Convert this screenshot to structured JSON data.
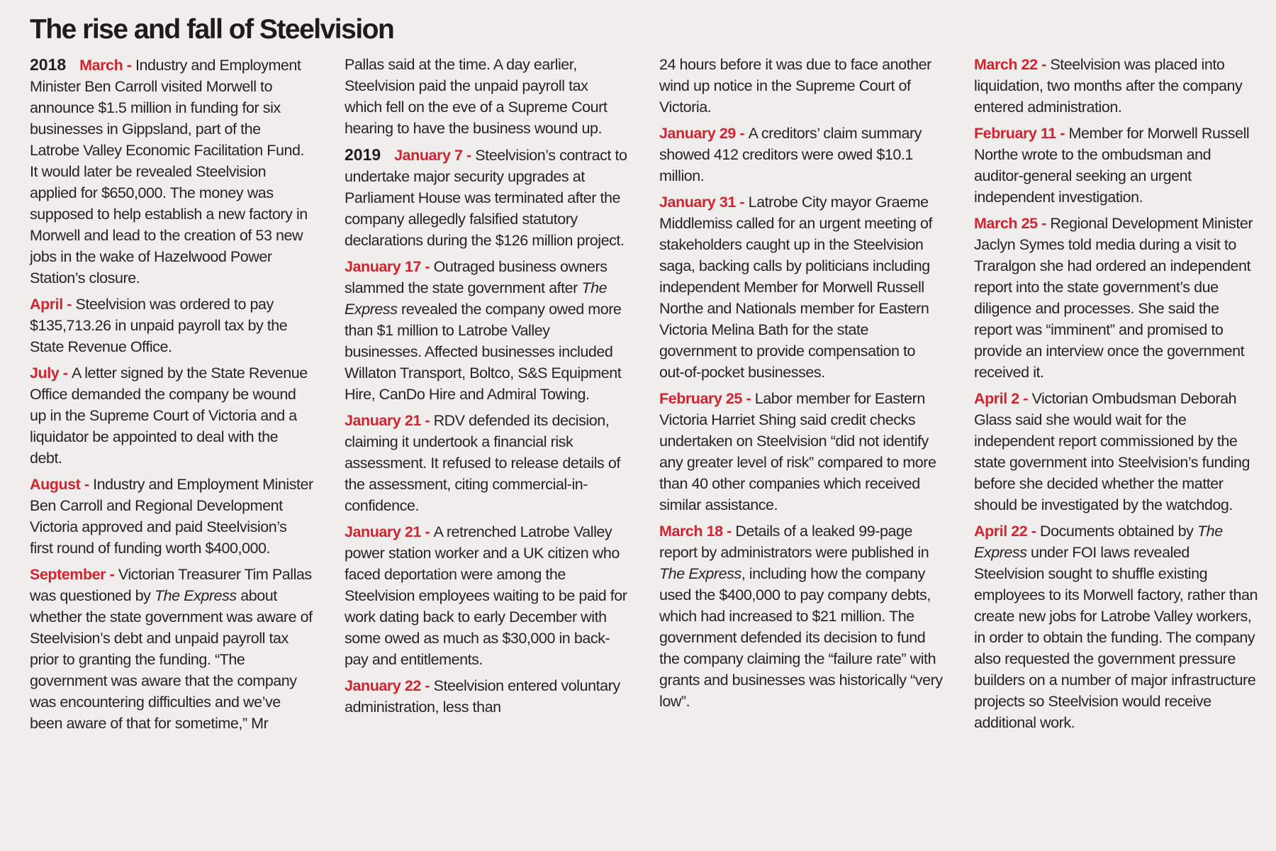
{
  "title": "The rise and fall of Steelvision",
  "colors": {
    "background": "#efeeec",
    "body_text": "#272324",
    "date_red": "#d2232e",
    "title_black": "#1e1b1c"
  },
  "columns": [
    {
      "entries": [
        {
          "year": "2018",
          "date": "March",
          "text": [
            {
              "t": "Industry and Employment Minister Ben Carroll visited Morwell to announce $1.5 million in funding for six businesses in Gippsland, part of the Latrobe Valley Economic Facilitation Fund. It would later be revealed Steelvision applied for $650,000. The money was supposed to help establish a new factory in Morwell and lead to the creation of 53 new jobs in the wake of Hazelwood Power Station’s closure."
            }
          ]
        },
        {
          "date": "April",
          "text": [
            {
              "t": "Steelvision was ordered to pay $135,713.26 in unpaid payroll tax by the State Revenue Office."
            }
          ]
        },
        {
          "date": "July",
          "text": [
            {
              "t": "A letter signed by the State Revenue Office demanded the company be wound up in the Supreme Court of Victoria and a liquidator be appointed to deal with the debt."
            }
          ]
        },
        {
          "date": "August",
          "text": [
            {
              "t": "Industry and Employment Minister Ben Carroll and Regional Development Victoria approved and paid Steelvision’s first round of funding worth $400,000."
            }
          ]
        },
        {
          "date": "September",
          "text": [
            {
              "t": "Victorian Treasurer Tim Pallas was questioned by "
            },
            {
              "t": "The Express",
              "italic": true
            },
            {
              "t": " about whether the state government was aware of Steelvision’s debt and unpaid payroll tax prior to granting the funding. “The government was aware that the company was encountering difficulties and we’ve been aware of that for sometime,” Mr"
            }
          ]
        }
      ]
    },
    {
      "entries": [
        {
          "text": [
            {
              "t": "Pallas said at the time. A day earlier, Steelvision paid the unpaid payroll tax which fell on the eve of a Supreme Court hearing to have the business wound up."
            }
          ]
        },
        {
          "year": "2019",
          "date": "January 7",
          "text": [
            {
              "t": "Steelvision’s contract to undertake major security upgrades at Parliament House was terminated after the company allegedly falsified statutory declarations during the $126 million project."
            }
          ]
        },
        {
          "date": "January 17",
          "text": [
            {
              "t": "Outraged business owners slammed the state government after "
            },
            {
              "t": "The Express",
              "italic": true
            },
            {
              "t": " revealed the company owed more than $1 million to Latrobe Valley businesses. Affected businesses included Willaton Transport, Boltco, S&S Equipment Hire, CanDo Hire and Admiral Towing."
            }
          ]
        },
        {
          "date": "January 21",
          "text": [
            {
              "t": "RDV defended its decision, claiming it undertook a financial risk assessment. It refused to release details of the assessment, citing commercial-in-confidence."
            }
          ]
        },
        {
          "date": "January 21",
          "text": [
            {
              "t": "A retrenched Latrobe Valley power station worker and a UK citizen who faced deportation were among the Steelvision employees waiting to be paid for work dating back to early December with some owed as much as $30,000 in back-pay and entitlements."
            }
          ]
        },
        {
          "date": "January 22",
          "text": [
            {
              "t": "Steelvision entered voluntary administration, less than"
            }
          ]
        }
      ]
    },
    {
      "entries": [
        {
          "text": [
            {
              "t": "24 hours before it was due to face another wind up notice in the Supreme Court of Victoria."
            }
          ]
        },
        {
          "date": "January 29",
          "text": [
            {
              "t": "A creditors’ claim summary showed 412 creditors were owed $10.1 million."
            }
          ]
        },
        {
          "date": "January 31",
          "text": [
            {
              "t": "Latrobe City mayor Graeme Middlemiss called for an urgent meeting of stakeholders caught up in the Steelvision saga, backing calls by politicians including independent Member for Morwell Russell Northe and Nationals member for Eastern Victoria Melina Bath for the state government to provide compensation to out-of-pocket businesses."
            }
          ]
        },
        {
          "date": "February 25",
          "text": [
            {
              "t": "Labor member for Eastern Victoria Harriet Shing said credit checks undertaken on Steelvision “did not identify any greater level of risk” compared to more than 40 other companies which received similar assistance."
            }
          ]
        },
        {
          "date": "March 18",
          "text": [
            {
              "t": "Details of a leaked 99-page report by administrators were published in "
            },
            {
              "t": "The Express",
              "italic": true
            },
            {
              "t": ", including how the company used the $400,000 to pay company debts, which had increased to $21 million. The government defended its decision to fund the company claiming the “failure rate” with grants and businesses was historically “very low”."
            }
          ]
        }
      ]
    },
    {
      "entries": [
        {
          "date": "March 22",
          "text": [
            {
              "t": "Steelvision was placed into liquidation, two months after the company entered administration."
            }
          ]
        },
        {
          "date": "February 11",
          "text": [
            {
              "t": "Member for Morwell Russell Northe wrote to the ombudsman and auditor-general seeking an urgent independent investigation."
            }
          ]
        },
        {
          "date": "March 25",
          "text": [
            {
              "t": "Regional Development Minister Jaclyn Symes told media during a visit to Traralgon she had ordered an independent report into the state government’s due diligence and processes. She said the report was “imminent” and promised to provide an interview once the government received it."
            }
          ]
        },
        {
          "date": "April 2",
          "text": [
            {
              "t": "Victorian Ombudsman Deborah Glass said she would wait for the independent report commissioned by the state government into Steelvision’s funding before she decided whether the matter should be investigated by the watchdog."
            }
          ]
        },
        {
          "date": "April 22",
          "text": [
            {
              "t": "Documents obtained by "
            },
            {
              "t": "The Express",
              "italic": true
            },
            {
              "t": " under FOI laws revealed Steelvision sought to shuffle existing employees to its Morwell factory, rather than create new jobs for Latrobe Valley workers, in order to obtain the funding. The company also requested the government pressure builders on a number of major infrastructure projects so Steelvision would receive additional work."
            }
          ]
        }
      ]
    }
  ]
}
